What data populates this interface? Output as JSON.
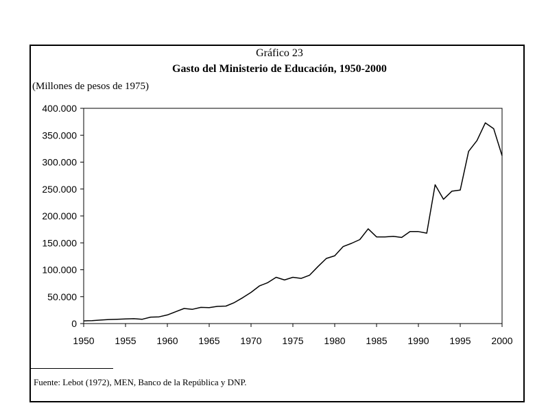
{
  "chart_data": {
    "type": "line",
    "chart_number": "Gráfico 23",
    "title": "Gasto del Ministerio de Educación, 1950-2000",
    "ylabel": "(Millones de pesos de 1975)",
    "xlabel": "",
    "xlim": [
      1950,
      2000
    ],
    "ylim": [
      0,
      400000
    ],
    "x_ticks": [
      1950,
      1955,
      1960,
      1965,
      1970,
      1975,
      1980,
      1985,
      1990,
      1995,
      2000
    ],
    "x_tick_labels": [
      "1950",
      "1955",
      "1960",
      "1965",
      "1970",
      "1975",
      "1980",
      "1985",
      "1990",
      "1995",
      "2000"
    ],
    "y_ticks": [
      0,
      50000,
      100000,
      150000,
      200000,
      250000,
      300000,
      350000,
      400000
    ],
    "y_tick_labels": [
      "0",
      "50.000",
      "100.000",
      "150.000",
      "200.000",
      "250.000",
      "300.000",
      "350.000",
      "400.000"
    ],
    "grid": false,
    "series": [
      {
        "name": "Gasto del Ministerio de Educación",
        "color": "#000000",
        "x": [
          1950,
          1951,
          1952,
          1953,
          1954,
          1955,
          1956,
          1957,
          1958,
          1959,
          1960,
          1961,
          1962,
          1963,
          1964,
          1965,
          1966,
          1967,
          1968,
          1969,
          1970,
          1971,
          1972,
          1973,
          1974,
          1975,
          1976,
          1977,
          1978,
          1979,
          1980,
          1981,
          1982,
          1983,
          1984,
          1985,
          1986,
          1987,
          1988,
          1989,
          1990,
          1991,
          1992,
          1993,
          1994,
          1995,
          1996,
          1997,
          1998,
          1999,
          2000
        ],
        "values": [
          5000,
          5500,
          6500,
          7500,
          8000,
          8500,
          9000,
          8000,
          12000,
          12500,
          16000,
          22000,
          28000,
          26500,
          30000,
          29500,
          32000,
          32500,
          39000,
          48000,
          58000,
          70000,
          76000,
          86000,
          81000,
          86000,
          84000,
          90000,
          106000,
          121000,
          126000,
          143000,
          149000,
          156000,
          176000,
          161000,
          161000,
          162000,
          160000,
          171000,
          171000,
          168000,
          258000,
          231000,
          246000,
          248000,
          320000,
          340000,
          373000,
          362000,
          312000
        ]
      }
    ]
  },
  "source_note": "Fuente: Lebot (1972), MEN, Banco de la República y DNP."
}
